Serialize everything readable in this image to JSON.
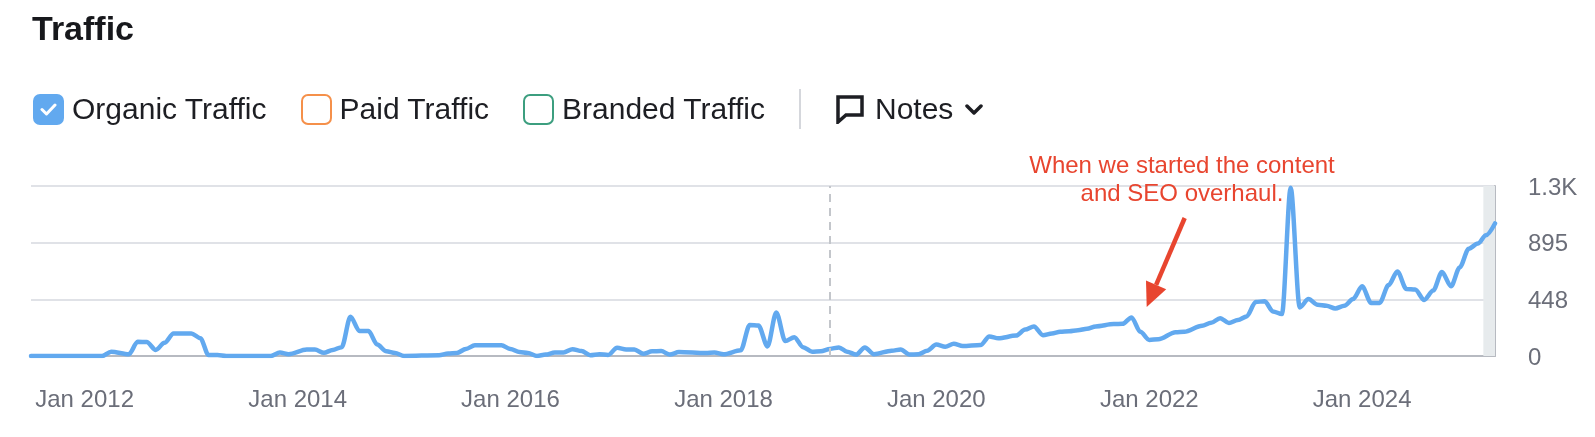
{
  "chart_data": {
    "type": "line",
    "title": "Traffic",
    "x": [
      "2011-07",
      "2012-03",
      "2012-04",
      "2012-06",
      "2012-07",
      "2012-08",
      "2012-09",
      "2012-10",
      "2012-11",
      "2013-01",
      "2013-02",
      "2013-03",
      "2013-04",
      "2013-05",
      "2013-10",
      "2013-11",
      "2013-12",
      "2014-02",
      "2014-03",
      "2014-04",
      "2014-05",
      "2014-06",
      "2014-07",
      "2014-08",
      "2014-09",
      "2014-10",
      "2014-11",
      "2014-12",
      "2015-01",
      "2015-05",
      "2015-06",
      "2015-07",
      "2015-08",
      "2015-09",
      "2015-12",
      "2016-01",
      "2016-02",
      "2016-03",
      "2016-04",
      "2016-05",
      "2016-06",
      "2016-07",
      "2016-08",
      "2016-09",
      "2016-10",
      "2016-11",
      "2016-12",
      "2017-01",
      "2017-02",
      "2017-03",
      "2017-04",
      "2017-05",
      "2017-06",
      "2017-07",
      "2017-08",
      "2017-11",
      "2017-12",
      "2018-01",
      "2018-03",
      "2018-04",
      "2018-05",
      "2018-06",
      "2018-07",
      "2018-08",
      "2018-09",
      "2018-10",
      "2018-11",
      "2018-12",
      "2019-01",
      "2019-02",
      "2019-03",
      "2019-04",
      "2019-05",
      "2019-06",
      "2019-08",
      "2019-09",
      "2019-10",
      "2019-11",
      "2019-12",
      "2020-01",
      "2020-02",
      "2020-03",
      "2020-04",
      "2020-06",
      "2020-07",
      "2020-08",
      "2020-10",
      "2020-11",
      "2020-12",
      "2021-01",
      "2021-02",
      "2021-03",
      "2021-04",
      "2021-05",
      "2021-06",
      "2021-07",
      "2021-09",
      "2021-10",
      "2021-11",
      "2021-12",
      "2022-01",
      "2022-02",
      "2022-04",
      "2022-05",
      "2022-07",
      "2022-08",
      "2022-09",
      "2022-10",
      "2022-11",
      "2022-12",
      "2023-01",
      "2023-02",
      "2023-03",
      "2023-04",
      "2023-05",
      "2023-06",
      "2023-07",
      "2023-08",
      "2023-09",
      "2023-10",
      "2023-11",
      "2023-12",
      "2024-01",
      "2024-02",
      "2024-03",
      "2024-04",
      "2024-05",
      "2024-06",
      "2024-07",
      "2024-08",
      "2024-09",
      "2024-10",
      "2024-11",
      "2024-12",
      "2025-01",
      "2025-02",
      "2025-03",
      "2025-04"
    ],
    "series": [
      {
        "name": "Organic Traffic",
        "color": "#62a9ef",
        "values": [
          0,
          0,
          34,
          14,
          113,
          110,
          48,
          104,
          178,
          178,
          141,
          8,
          8,
          0,
          0,
          28,
          14,
          51,
          51,
          25,
          48,
          70,
          310,
          197,
          197,
          90,
          37,
          23,
          0,
          6,
          20,
          23,
          56,
          85,
          85,
          56,
          31,
          23,
          0,
          11,
          28,
          28,
          54,
          39,
          6,
          14,
          8,
          65,
          51,
          51,
          17,
          37,
          39,
          11,
          31,
          23,
          28,
          14,
          45,
          245,
          240,
          76,
          344,
          118,
          149,
          70,
          34,
          37,
          56,
          68,
          34,
          11,
          68,
          14,
          42,
          51,
          11,
          14,
          42,
          90,
          73,
          96,
          79,
          87,
          155,
          140,
          161,
          209,
          234,
          164,
          178,
          192,
          195,
          203,
          215,
          234,
          252,
          254,
          305,
          191,
          127,
          133,
          188,
          191,
          239,
          262,
          299,
          260,
          284,
          313,
          427,
          432,
          352,
          331,
          1330,
          384,
          450,
          405,
          397,
          376,
          397,
          450,
          551,
          419,
          419,
          560,
          668,
          530,
          525,
          443,
          517,
          663,
          551,
          700,
          848,
          888,
          954,
          1047
        ]
      },
      {
        "name": "Paid Traffic",
        "color": "#f5904a",
        "values": [
          null,
          null,
          null,
          null,
          null,
          null,
          null,
          null,
          null,
          null,
          null,
          null,
          null,
          null,
          null,
          null,
          null,
          null,
          null,
          null,
          null,
          null,
          null,
          null,
          null,
          null,
          null,
          null,
          null,
          null,
          null,
          null,
          null,
          null,
          null,
          null,
          null,
          null,
          null,
          null,
          null,
          null,
          null,
          null,
          null,
          null,
          null,
          null,
          null,
          null,
          null,
          null,
          null,
          null,
          null,
          null,
          null,
          null,
          null,
          null,
          null,
          null,
          null,
          null,
          null,
          null,
          null,
          null,
          null,
          null,
          null,
          null,
          null,
          null,
          null,
          null,
          null,
          null,
          null,
          null,
          null,
          null,
          null,
          null,
          null,
          null,
          null,
          null,
          null,
          null,
          null,
          null,
          null,
          null,
          null,
          null,
          null,
          null,
          null,
          null,
          null,
          null,
          null,
          null,
          null,
          null,
          null,
          null,
          null,
          null,
          null,
          null,
          null,
          null,
          null,
          null,
          null,
          null,
          null,
          null,
          null,
          null,
          null,
          null,
          null,
          null,
          null,
          null,
          null,
          null,
          null,
          null,
          null,
          null,
          null,
          null,
          null,
          null
        ]
      },
      {
        "name": "Branded Traffic",
        "color": "#3c9e7f",
        "values": [
          null,
          null,
          null,
          null,
          null,
          null,
          null,
          null,
          null,
          null,
          null,
          null,
          null,
          null,
          null,
          null,
          null,
          null,
          null,
          null,
          null,
          null,
          null,
          null,
          null,
          null,
          null,
          null,
          null,
          null,
          null,
          null,
          null,
          null,
          null,
          null,
          null,
          null,
          null,
          null,
          null,
          null,
          null,
          null,
          null,
          null,
          null,
          null,
          null,
          null,
          null,
          null,
          null,
          null,
          null,
          null,
          null,
          null,
          null,
          null,
          null,
          null,
          null,
          null,
          null,
          null,
          null,
          null,
          null,
          null,
          null,
          null,
          null,
          null,
          null,
          null,
          null,
          null,
          null,
          null,
          null,
          null,
          null,
          null,
          null,
          null,
          null,
          null,
          null,
          null,
          null,
          null,
          null,
          null,
          null,
          null,
          null,
          null,
          null,
          null,
          null,
          null,
          null,
          null,
          null,
          null,
          null,
          null,
          null,
          null,
          null,
          null,
          null,
          null,
          null,
          null,
          null,
          null,
          null,
          null,
          null,
          null,
          null,
          null,
          null,
          null,
          null,
          null,
          null,
          null,
          null,
          null,
          null,
          null,
          null,
          null,
          null,
          null
        ]
      }
    ],
    "xlim": [
      "2011-07",
      "2025-04"
    ],
    "xticks": [
      {
        "value": "2012-01",
        "label": "Jan 2012"
      },
      {
        "value": "2014-01",
        "label": "Jan 2014"
      },
      {
        "value": "2016-01",
        "label": "Jan 2016"
      },
      {
        "value": "2018-01",
        "label": "Jan 2018"
      },
      {
        "value": "2020-01",
        "label": "Jan 2020"
      },
      {
        "value": "2022-01",
        "label": "Jan 2022"
      },
      {
        "value": "2024-01",
        "label": "Jan 2024"
      }
    ],
    "ylim": [
      0,
      1343
    ],
    "yticks": [
      0,
      448,
      895,
      {
        "value": 1343,
        "label": "1.3K"
      }
    ],
    "grid": "y",
    "legend": "top left",
    "ref_lines": [
      {
        "axis": "x",
        "value": "2019-01",
        "color": "#c3c6cb",
        "line_style": "dashed"
      }
    ],
    "bands": [
      {
        "axis": "x",
        "from": "2025-02-20",
        "to": "2025-04",
        "color": "#e7ebed"
      }
    ],
    "annotations": [
      "Notes",
      "When we started the content\nand SEO overhaul."
    ]
  }
}
